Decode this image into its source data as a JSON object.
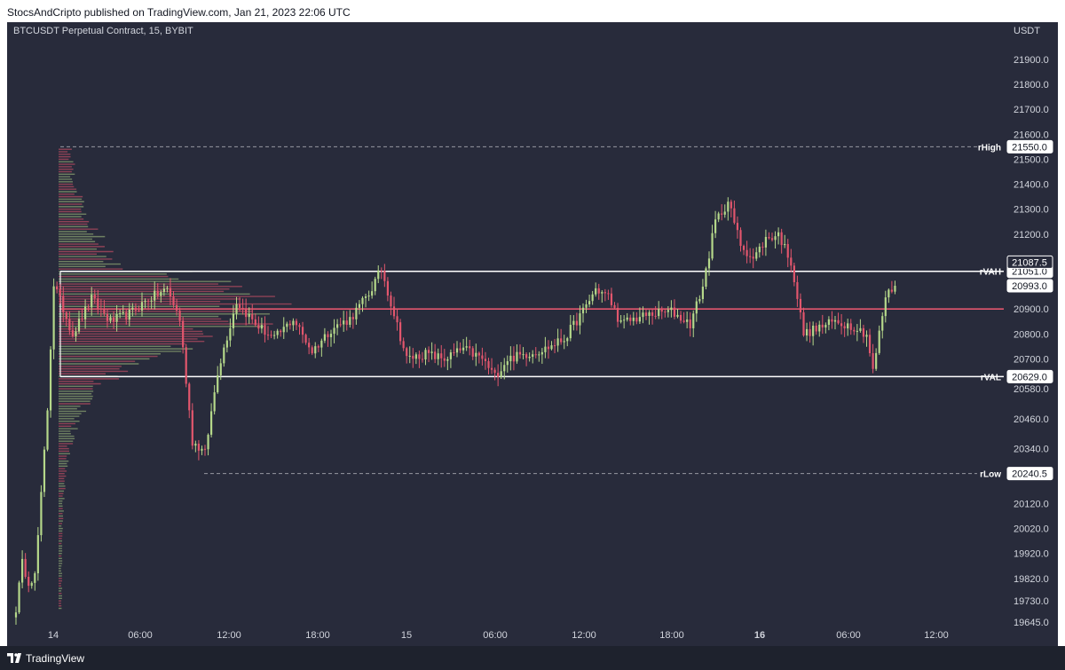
{
  "header": {
    "published_text": "StocsAndCripto published on TradingView.com, Jan 21, 2023 22:06 UTC"
  },
  "footer": {
    "brand": "TradingView",
    "logo_icon": "tradingview-logo-icon"
  },
  "colors": {
    "background": "#282b3b",
    "bull": "#b5d88a",
    "bear": "#e2566d",
    "poc": "#e2566d",
    "value_area": "#ffffff",
    "text": "#d1d4dc"
  },
  "chart_data": {
    "type": "candlestick",
    "title": "BTCUSDT Perpetual Contract, 15, BYBIT",
    "currency": "USDT",
    "timeframe": "15",
    "exchange": "BYBIT",
    "grid": false,
    "y_ticks": [
      21900,
      21800,
      21700,
      21600,
      21500,
      21400,
      21300,
      21200,
      20900,
      20800,
      20700,
      20580,
      20460,
      20340,
      20120,
      20020,
      19920,
      19820,
      19730,
      19645
    ],
    "y_tick_labels": [
      "21900.0",
      "21800.0",
      "21700.0",
      "21600.0",
      "21500.0",
      "21400.0",
      "21300.0",
      "21200.0",
      "20900.0",
      "20800.0",
      "20700.0",
      "20580.0",
      "20460.0",
      "20340.0",
      "20120.0",
      "20020.0",
      "19920.0",
      "19820.0",
      "19730.0",
      "19645.0"
    ],
    "x_ticks": [
      {
        "label": "14",
        "bold": false
      },
      {
        "label": "06:00",
        "bold": false
      },
      {
        "label": "12:00",
        "bold": false
      },
      {
        "label": "18:00",
        "bold": false
      },
      {
        "label": "15",
        "bold": false
      },
      {
        "label": "06:00",
        "bold": false
      },
      {
        "label": "12:00",
        "bold": false
      },
      {
        "label": "18:00",
        "bold": false
      },
      {
        "label": "16",
        "bold": true
      },
      {
        "label": "06:00",
        "bold": false
      },
      {
        "label": "12:00",
        "bold": false
      }
    ],
    "levels": [
      {
        "name": "rHigh",
        "value": 21550.0,
        "label": "21550.0",
        "style": "dashed"
      },
      {
        "name": "rVAH",
        "value": 21051.0,
        "label": "21051.0",
        "style": "solid"
      },
      {
        "name": "rVAL",
        "value": 20629.0,
        "label": "20629.0",
        "style": "solid"
      },
      {
        "name": "rLow",
        "value": 20240.5,
        "label": "20240.5",
        "style": "dashed"
      }
    ],
    "poc": 20900.0,
    "price_tags": [
      {
        "value": 21087.5,
        "label": "21087.5",
        "kind": "outline"
      },
      {
        "value": 20993.0,
        "label": "20993.0",
        "kind": "current"
      }
    ],
    "candle_keyframes": [
      [
        0,
        19700
      ],
      [
        2,
        19880
      ],
      [
        4,
        19810
      ],
      [
        6,
        19830
      ],
      [
        8,
        20150
      ],
      [
        10,
        20500
      ],
      [
        12,
        21000
      ],
      [
        18,
        20800
      ],
      [
        24,
        20940
      ],
      [
        30,
        20850
      ],
      [
        36,
        20880
      ],
      [
        42,
        20940
      ],
      [
        48,
        20980
      ],
      [
        52,
        20860
      ],
      [
        56,
        20370
      ],
      [
        60,
        20320
      ],
      [
        64,
        20650
      ],
      [
        70,
        20930
      ],
      [
        76,
        20840
      ],
      [
        82,
        20780
      ],
      [
        88,
        20860
      ],
      [
        94,
        20730
      ],
      [
        100,
        20820
      ],
      [
        106,
        20860
      ],
      [
        112,
        20960
      ],
      [
        116,
        21060
      ],
      [
        120,
        20880
      ],
      [
        124,
        20700
      ],
      [
        130,
        20720
      ],
      [
        136,
        20700
      ],
      [
        142,
        20740
      ],
      [
        148,
        20700
      ],
      [
        152,
        20630
      ],
      [
        156,
        20700
      ],
      [
        162,
        20720
      ],
      [
        168,
        20740
      ],
      [
        174,
        20780
      ],
      [
        180,
        20890
      ],
      [
        184,
        20980
      ],
      [
        188,
        20950
      ],
      [
        192,
        20840
      ],
      [
        196,
        20860
      ],
      [
        202,
        20880
      ],
      [
        208,
        20890
      ],
      [
        214,
        20840
      ],
      [
        218,
        20990
      ],
      [
        222,
        21250
      ],
      [
        226,
        21330
      ],
      [
        230,
        21160
      ],
      [
        234,
        21100
      ],
      [
        238,
        21180
      ],
      [
        242,
        21200
      ],
      [
        246,
        21090
      ],
      [
        250,
        20800
      ],
      [
        254,
        20820
      ],
      [
        260,
        20850
      ],
      [
        266,
        20830
      ],
      [
        270,
        20800
      ],
      [
        272,
        20650
      ],
      [
        276,
        20950
      ],
      [
        279,
        20993
      ]
    ]
  }
}
